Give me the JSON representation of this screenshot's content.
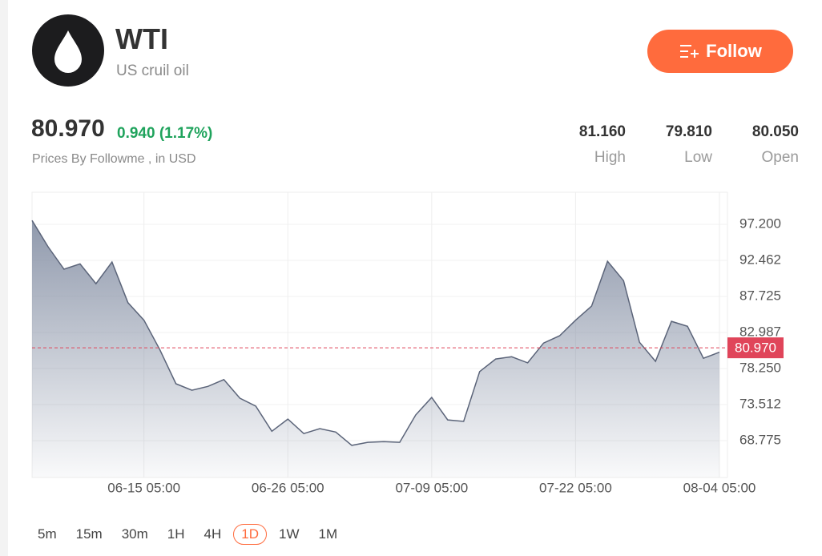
{
  "header": {
    "symbol": "WTI",
    "name": "US cruil oil",
    "follow": "Follow"
  },
  "quote": {
    "price": "80.970",
    "change": "0.940 (1.17%)",
    "source": "Prices By Followme , in USD",
    "stats": [
      {
        "value": "81.160",
        "label": "High"
      },
      {
        "value": "79.810",
        "label": "Low"
      },
      {
        "value": "80.050",
        "label": "Open"
      }
    ]
  },
  "chart_data": {
    "type": "area",
    "categories": [
      null,
      null,
      null,
      null,
      null,
      null,
      null,
      "06-15 05:00",
      null,
      null,
      null,
      null,
      null,
      null,
      null,
      null,
      "06-26 05:00",
      null,
      null,
      null,
      null,
      null,
      null,
      null,
      null,
      "07-09 05:00",
      null,
      null,
      null,
      null,
      null,
      null,
      null,
      null,
      "07-22 05:00",
      null,
      null,
      null,
      null,
      null,
      null,
      null,
      null,
      "08-04 05:00"
    ],
    "series": [
      {
        "color": "#5b6479",
        "values": [
          97.7,
          94.25,
          91.3,
          92.0,
          89.4,
          92.25,
          86.9,
          84.6,
          80.7,
          76.25,
          75.4,
          75.9,
          76.8,
          74.35,
          73.3,
          70.0,
          71.6,
          69.7,
          70.35,
          69.9,
          68.15,
          68.55,
          68.65,
          68.55,
          72.15,
          74.45,
          71.5,
          71.3,
          77.85,
          79.5,
          79.8,
          79.0,
          81.6,
          82.55,
          84.6,
          86.45,
          92.35,
          89.8,
          81.7,
          79.2,
          84.45,
          83.8,
          79.6,
          80.4
        ]
      }
    ],
    "ylim": [
      63.93,
      101.41
    ],
    "yticks": [
      {
        "value": 97.2,
        "label": "97.200"
      },
      {
        "value": 92.462,
        "label": "92.462"
      },
      {
        "value": 87.725,
        "label": "87.725"
      },
      {
        "value": 82.987,
        "label": "82.987"
      },
      {
        "value": 78.25,
        "label": "78.250"
      },
      {
        "value": 73.512,
        "label": "73.512"
      },
      {
        "value": 68.775,
        "label": "68.775"
      }
    ],
    "current_price": {
      "value": 80.97,
      "label": "80.970"
    },
    "current_color": "#e0455a",
    "grid": true
  },
  "periods": {
    "items": [
      "5m",
      "15m",
      "30m",
      "1H",
      "4H",
      "1D",
      "1W",
      "1M"
    ],
    "active": 5
  }
}
